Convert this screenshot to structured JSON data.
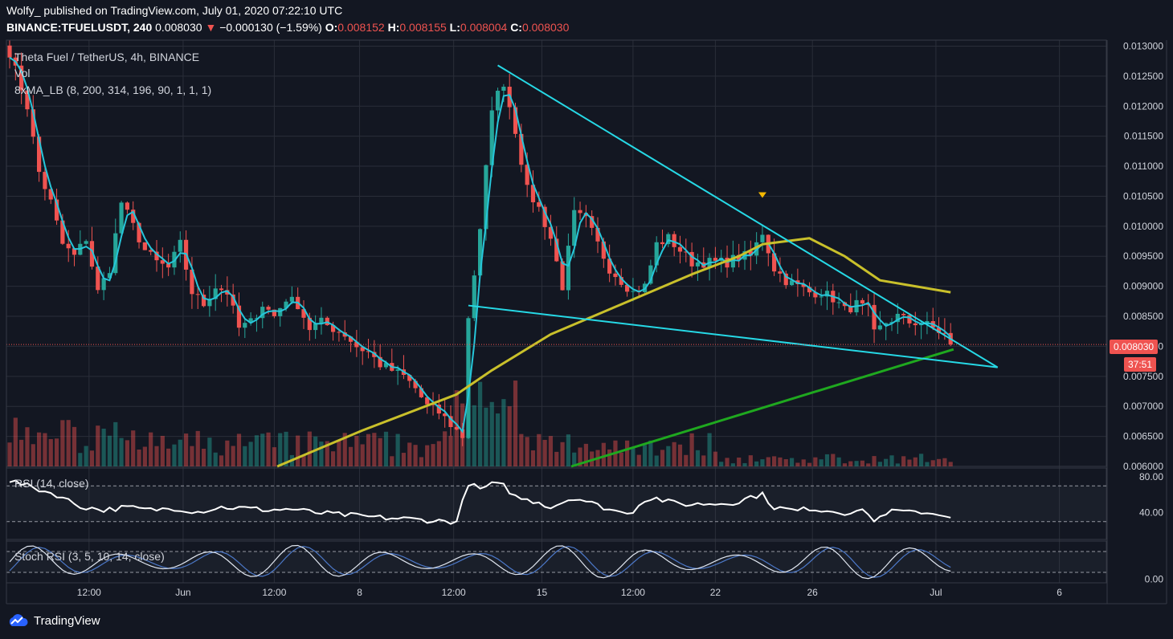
{
  "header": {
    "publisher_line": "Wolfy_ published on TradingView.com, July 01, 2020 07:22:10 UTC",
    "symbol": "BINANCE:TFUELUSDT, 240",
    "last": "0.008030",
    "change": "−0.000130 (−1.59%)",
    "o_label": "O:",
    "o": "0.008152",
    "h_label": "H:",
    "h": "0.008155",
    "l_label": "L:",
    "l": "0.008004",
    "c_label": "C:",
    "c": "0.008030"
  },
  "legend": {
    "title": "Theta Fuel / TetherUS, 4h, BINANCE",
    "vol": "Vol",
    "ma": "8xMA_LB (8, 200, 314, 196, 90, 1, 1, 1)",
    "rsi": "RSI (14, close)",
    "stoch": "Stoch RSI (3, 5, 10, 14, close)"
  },
  "price_tag": "0.008030",
  "countdown_tag": "37:51",
  "brand": "TradingView",
  "colors": {
    "background": "#131722",
    "up": "#26a69a",
    "down": "#ef5350",
    "fast_ma": "#26c6da",
    "slow_ma": "#c9c02b",
    "long_ma": "#1fa81f",
    "trendline": "#26d9e6",
    "oscillator": "#ffffff"
  },
  "chart_data": [
    {
      "type": "candlestick",
      "title": "Theta Fuel / TetherUS, 4h, BINANCE",
      "y_ticks": [
        "0.013000",
        "0.012500",
        "0.012000",
        "0.011500",
        "0.011000",
        "0.010500",
        "0.010000",
        "0.009500",
        "0.009000",
        "0.008500",
        "0.008000",
        "0.007500",
        "0.007000",
        "0.006500",
        "0.006000"
      ],
      "ylim": [
        0.006,
        0.0131
      ],
      "x_ticks": [
        "12:00",
        "Jun",
        "12:00",
        "8",
        "12:00",
        "15",
        "12:00",
        "22",
        "26",
        "Jul",
        "6"
      ],
      "close_anchors": [
        [
          0,
          0.0129
        ],
        [
          3,
          0.012
        ],
        [
          5,
          0.0109
        ],
        [
          7,
          0.0104
        ],
        [
          9,
          0.0097
        ],
        [
          11,
          0.0095
        ],
        [
          13,
          0.0098
        ],
        [
          15,
          0.0089
        ],
        [
          17,
          0.0093
        ],
        [
          19,
          0.0104
        ],
        [
          21,
          0.01
        ],
        [
          23,
          0.0096
        ],
        [
          25,
          0.0094
        ],
        [
          27,
          0.0093
        ],
        [
          29,
          0.0097
        ],
        [
          31,
          0.0089
        ],
        [
          33,
          0.0087
        ],
        [
          35,
          0.009
        ],
        [
          37,
          0.0089
        ],
        [
          39,
          0.0083
        ],
        [
          41,
          0.0084
        ],
        [
          43,
          0.0087
        ],
        [
          45,
          0.0085
        ],
        [
          47,
          0.0088
        ],
        [
          49,
          0.0087
        ],
        [
          51,
          0.0083
        ],
        [
          53,
          0.0084
        ],
        [
          55,
          0.0083
        ],
        [
          57,
          0.0082
        ],
        [
          59,
          0.008
        ],
        [
          61,
          0.0079
        ],
        [
          63,
          0.0077
        ],
        [
          65,
          0.0076
        ],
        [
          67,
          0.0075
        ],
        [
          69,
          0.0073
        ],
        [
          71,
          0.007
        ],
        [
          73,
          0.0069
        ],
        [
          75,
          0.0067
        ],
        [
          77,
          0.0065
        ],
        [
          78,
          0.0085
        ],
        [
          80,
          0.0099
        ],
        [
          82,
          0.012
        ],
        [
          84,
          0.0124
        ],
        [
          86,
          0.0116
        ],
        [
          88,
          0.0106
        ],
        [
          90,
          0.0103
        ],
        [
          92,
          0.0098
        ],
        [
          94,
          0.009
        ],
        [
          96,
          0.0102
        ],
        [
          98,
          0.0101
        ],
        [
          100,
          0.0097
        ],
        [
          102,
          0.0093
        ],
        [
          104,
          0.0091
        ],
        [
          106,
          0.0089
        ],
        [
          108,
          0.009
        ],
        [
          110,
          0.0097
        ],
        [
          112,
          0.0098
        ],
        [
          114,
          0.0096
        ],
        [
          116,
          0.0094
        ],
        [
          118,
          0.0094
        ],
        [
          120,
          0.0094
        ],
        [
          122,
          0.0094
        ],
        [
          124,
          0.0095
        ],
        [
          126,
          0.0095
        ],
        [
          128,
          0.0099
        ],
        [
          130,
          0.0093
        ],
        [
          132,
          0.0091
        ],
        [
          134,
          0.009
        ],
        [
          136,
          0.0089
        ],
        [
          138,
          0.0089
        ],
        [
          140,
          0.0088
        ],
        [
          142,
          0.0086
        ],
        [
          144,
          0.0087
        ],
        [
          146,
          0.0086
        ],
        [
          147,
          0.0082
        ],
        [
          149,
          0.0084
        ],
        [
          151,
          0.0085
        ],
        [
          153,
          0.0084
        ],
        [
          155,
          0.0084
        ],
        [
          157,
          0.0083
        ],
        [
          159,
          0.0082
        ],
        [
          160,
          0.008
        ]
      ],
      "annotations": {
        "upper_trendline": [
          [
            "Jun 14 00:00",
            0.01268
          ],
          [
            "Jul 4 00:00",
            0.00765
          ]
        ],
        "lower_trendline": [
          [
            "Jun 13 08:00",
            0.00868
          ],
          [
            "Jul 4 00:00",
            0.00765
          ]
        ],
        "last_price": 0.00803,
        "marker": "down triangle above Jun 24 high"
      }
    },
    {
      "type": "bar",
      "title": "Vol",
      "series": [
        {
          "values": "relative per-candle volume, highest near May 29 and Jun 13"
        }
      ]
    },
    {
      "type": "line",
      "title": "RSI (14, close)",
      "y_ticks": [
        "80.00",
        "40.00"
      ],
      "ylim": [
        10,
        90
      ],
      "bands": [
        70,
        30
      ],
      "anchors": [
        [
          0,
          76
        ],
        [
          4,
          68
        ],
        [
          8,
          60
        ],
        [
          12,
          47
        ],
        [
          16,
          43
        ],
        [
          20,
          46
        ],
        [
          24,
          43
        ],
        [
          28,
          45
        ],
        [
          32,
          41
        ],
        [
          36,
          46
        ],
        [
          40,
          45
        ],
        [
          44,
          43
        ],
        [
          48,
          44
        ],
        [
          52,
          40
        ],
        [
          56,
          38
        ],
        [
          60,
          36
        ],
        [
          64,
          34
        ],
        [
          68,
          33
        ],
        [
          72,
          31
        ],
        [
          76,
          30
        ],
        [
          78,
          73
        ],
        [
          80,
          66
        ],
        [
          82,
          72
        ],
        [
          84,
          70
        ],
        [
          86,
          58
        ],
        [
          88,
          54
        ],
        [
          90,
          52
        ],
        [
          92,
          46
        ],
        [
          94,
          52
        ],
        [
          96,
          57
        ],
        [
          98,
          53
        ],
        [
          100,
          48
        ],
        [
          102,
          44
        ],
        [
          104,
          40
        ],
        [
          106,
          42
        ],
        [
          108,
          55
        ],
        [
          110,
          56
        ],
        [
          112,
          52
        ],
        [
          114,
          50
        ],
        [
          116,
          49
        ],
        [
          118,
          50
        ],
        [
          120,
          50
        ],
        [
          122,
          51
        ],
        [
          124,
          52
        ],
        [
          126,
          58
        ],
        [
          128,
          60
        ],
        [
          130,
          46
        ],
        [
          132,
          44
        ],
        [
          134,
          42
        ],
        [
          136,
          45
        ],
        [
          138,
          43
        ],
        [
          140,
          42
        ],
        [
          142,
          40
        ],
        [
          144,
          42
        ],
        [
          146,
          40
        ],
        [
          147,
          30
        ],
        [
          149,
          40
        ],
        [
          151,
          42
        ],
        [
          153,
          40
        ],
        [
          155,
          41
        ],
        [
          157,
          39
        ],
        [
          159,
          38
        ],
        [
          160,
          35
        ]
      ]
    },
    {
      "type": "line",
      "title": "Stoch RSI (3, 5, 10, 14, close)",
      "y_ticks": [
        "0.00"
      ],
      "ylim": [
        -10,
        110
      ],
      "bands": [
        80,
        20
      ]
    }
  ]
}
